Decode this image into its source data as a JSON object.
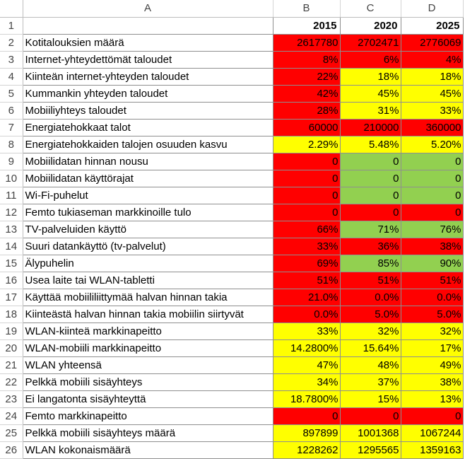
{
  "columns": [
    "A",
    "B",
    "C",
    "D"
  ],
  "header_row": {
    "row": "1",
    "label": "",
    "values": [
      "2015",
      "2020",
      "2025"
    ]
  },
  "colors": {
    "red": "#ff0000",
    "yellow": "#ffff00",
    "green": "#92d050"
  },
  "rows": [
    {
      "row": "2",
      "label": "Kotitalouksien määrä",
      "cells": [
        {
          "v": "2617780",
          "c": "red"
        },
        {
          "v": "2702471",
          "c": "red"
        },
        {
          "v": "2776069",
          "c": "red"
        }
      ]
    },
    {
      "row": "3",
      "label": "Internet-yhteydettömät taloudet",
      "cells": [
        {
          "v": "8%",
          "c": "red"
        },
        {
          "v": "6%",
          "c": "red"
        },
        {
          "v": "4%",
          "c": "red"
        }
      ]
    },
    {
      "row": "4",
      "label": "Kiinteän internet-yhteyden taloudet",
      "cells": [
        {
          "v": "22%",
          "c": "red"
        },
        {
          "v": "18%",
          "c": "yellow"
        },
        {
          "v": "18%",
          "c": "yellow"
        }
      ]
    },
    {
      "row": "5",
      "label": "Kummankin yhteyden taloudet",
      "cells": [
        {
          "v": "42%",
          "c": "red"
        },
        {
          "v": "45%",
          "c": "yellow"
        },
        {
          "v": "45%",
          "c": "yellow"
        }
      ]
    },
    {
      "row": "6",
      "label": "Mobiiliyhteys taloudet",
      "cells": [
        {
          "v": "28%",
          "c": "red"
        },
        {
          "v": "31%",
          "c": "yellow"
        },
        {
          "v": "33%",
          "c": "yellow"
        }
      ]
    },
    {
      "row": "7",
      "label": "Energiatehokkaat talot",
      "cells": [
        {
          "v": "60000",
          "c": "red"
        },
        {
          "v": "210000",
          "c": "red"
        },
        {
          "v": "360000",
          "c": "red"
        }
      ]
    },
    {
      "row": "8",
      "label": "Energiatehokkaiden talojen osuuden kasvu",
      "cells": [
        {
          "v": "2.29%",
          "c": "yellow"
        },
        {
          "v": "5.48%",
          "c": "yellow"
        },
        {
          "v": "5.20%",
          "c": "yellow"
        }
      ]
    },
    {
      "row": "9",
      "label": "Mobiilidatan hinnan nousu",
      "cells": [
        {
          "v": "0",
          "c": "red"
        },
        {
          "v": "0",
          "c": "green"
        },
        {
          "v": "0",
          "c": "green"
        }
      ]
    },
    {
      "row": "10",
      "label": "Mobiilidatan käyttörajat",
      "cells": [
        {
          "v": "0",
          "c": "red"
        },
        {
          "v": "0",
          "c": "green"
        },
        {
          "v": "0",
          "c": "green"
        }
      ]
    },
    {
      "row": "11",
      "label": "Wi-Fi-puhelut",
      "cells": [
        {
          "v": "0",
          "c": "red"
        },
        {
          "v": "0",
          "c": "green"
        },
        {
          "v": "0",
          "c": "green"
        }
      ]
    },
    {
      "row": "12",
      "label": "Femto tukiaseman markkinoille tulo",
      "cells": [
        {
          "v": "0",
          "c": "red"
        },
        {
          "v": "0",
          "c": "red"
        },
        {
          "v": "0",
          "c": "red"
        }
      ]
    },
    {
      "row": "13",
      "label": "TV-palveluiden käyttö",
      "cells": [
        {
          "v": "66%",
          "c": "red"
        },
        {
          "v": "71%",
          "c": "green"
        },
        {
          "v": "76%",
          "c": "green"
        }
      ]
    },
    {
      "row": "14",
      "label": "Suuri datankäyttö (tv-palvelut)",
      "cells": [
        {
          "v": "33%",
          "c": "red"
        },
        {
          "v": "36%",
          "c": "red"
        },
        {
          "v": "38%",
          "c": "red"
        }
      ]
    },
    {
      "row": "15",
      "label": "Älypuhelin",
      "cells": [
        {
          "v": "69%",
          "c": "red"
        },
        {
          "v": "85%",
          "c": "green"
        },
        {
          "v": "90%",
          "c": "green"
        }
      ]
    },
    {
      "row": "16",
      "label": "Usea laite tai WLAN-tabletti",
      "cells": [
        {
          "v": "51%",
          "c": "red"
        },
        {
          "v": "51%",
          "c": "red"
        },
        {
          "v": "51%",
          "c": "red"
        }
      ]
    },
    {
      "row": "17",
      "label": "Käyttää mobiililiittymää halvan hinnan takia",
      "cells": [
        {
          "v": "21.0%",
          "c": "red"
        },
        {
          "v": "0.0%",
          "c": "red"
        },
        {
          "v": "0.0%",
          "c": "red"
        }
      ]
    },
    {
      "row": "18",
      "label": "Kiinteästä halvan hinnan takia mobiilin siirtyvät",
      "cells": [
        {
          "v": "0.0%",
          "c": "red"
        },
        {
          "v": "5.0%",
          "c": "red"
        },
        {
          "v": "5.0%",
          "c": "red"
        }
      ]
    },
    {
      "row": "19",
      "label": "WLAN-kiinteä markkinapeitto",
      "cells": [
        {
          "v": "33%",
          "c": "yellow"
        },
        {
          "v": "32%",
          "c": "yellow"
        },
        {
          "v": "32%",
          "c": "yellow"
        }
      ]
    },
    {
      "row": "20",
      "label": "WLAN-mobiili markkinapeitto",
      "cells": [
        {
          "v": "14.2800%",
          "c": "yellow"
        },
        {
          "v": "15.64%",
          "c": "yellow"
        },
        {
          "v": "17%",
          "c": "yellow"
        }
      ]
    },
    {
      "row": "21",
      "label": "WLAN yhteensä",
      "cells": [
        {
          "v": "47%",
          "c": "yellow"
        },
        {
          "v": "48%",
          "c": "yellow"
        },
        {
          "v": "49%",
          "c": "yellow"
        }
      ]
    },
    {
      "row": "22",
      "label": "Pelkkä mobiili sisäyhteys",
      "cells": [
        {
          "v": "34%",
          "c": "yellow"
        },
        {
          "v": "37%",
          "c": "yellow"
        },
        {
          "v": "38%",
          "c": "yellow"
        }
      ]
    },
    {
      "row": "23",
      "label": "Ei langatonta sisäyhteyttä",
      "cells": [
        {
          "v": "18.7800%",
          "c": "yellow"
        },
        {
          "v": "15%",
          "c": "yellow"
        },
        {
          "v": "13%",
          "c": "yellow"
        }
      ]
    },
    {
      "row": "24",
      "label": "Femto markkinapeitto",
      "cells": [
        {
          "v": "0",
          "c": "red"
        },
        {
          "v": "0",
          "c": "red"
        },
        {
          "v": "0",
          "c": "red"
        }
      ]
    },
    {
      "row": "25",
      "label": "Pelkkä mobiili sisäyhteys määrä",
      "cells": [
        {
          "v": "897899",
          "c": "yellow"
        },
        {
          "v": "1001368",
          "c": "yellow"
        },
        {
          "v": "1067244",
          "c": "yellow"
        }
      ]
    },
    {
      "row": "26",
      "label": "WLAN kokonaismäärä",
      "cells": [
        {
          "v": "1228262",
          "c": "yellow"
        },
        {
          "v": "1295565",
          "c": "yellow"
        },
        {
          "v": "1359163",
          "c": "yellow"
        }
      ]
    }
  ]
}
